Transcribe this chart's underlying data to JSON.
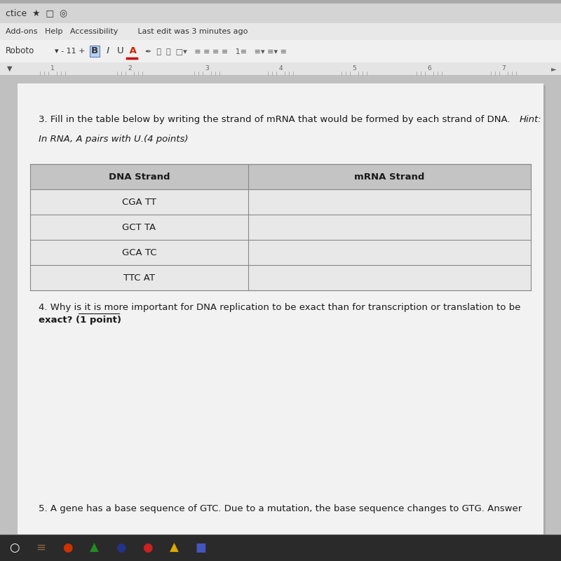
{
  "bg_top_bar": "#c8c8c8",
  "tab_bar_bg": "#d8d8d8",
  "tab_bar_text": "ctice  ★  □  ◎",
  "menu_bar_bg": "#e8e8e8",
  "menu_text": "Add-ons   Help   Accessibility        Last edit was 3 minutes ago",
  "toolbar_bg": "#ebebeb",
  "toolbar_text": "Roboto    ▾    -    11    +    B  I  U  A",
  "ruler_bg": "#e0e0e0",
  "ruler_numbers": [
    "1",
    "2",
    "3",
    "4",
    "5",
    "6",
    "7"
  ],
  "doc_outer_bg": "#b8b8b8",
  "doc_page_bg": "#f0f0f0",
  "question3_line1": "3. Fill in the table below by writing the strand of mRNA that would be formed by each strand of DNA. ",
  "question3_hint_word": "Hint:",
  "hint_text": "In RNA, A pairs with U.(4 points)",
  "col1_header": "DNA Strand",
  "col2_header": "mRNA Strand",
  "dna_strands": [
    "CGA TT",
    "GCT TA",
    "GCA TC",
    "TTC AT"
  ],
  "table_header_bg": "#c0c0c0",
  "table_row_bg": "#e8e8e8",
  "table_border_color": "#999999",
  "question4_line1": "4. Why is it is more important for DNA replication to be exact than for transcription or translation to be",
  "question4_line2": "exact? (1 point)",
  "question4_underline": "it is more",
  "question5_text": "5. A gene has a base sequence of GTC. Due to a mutation, the base sequence changes to GTG. Answer",
  "taskbar_bg": "#2a2a2a",
  "taskbar_icon_colors": [
    "#ffffff",
    "#888888",
    "#cc3300",
    "#228B22",
    "#000000",
    "#cc0000",
    "#ddaa00",
    "#4444cc"
  ]
}
